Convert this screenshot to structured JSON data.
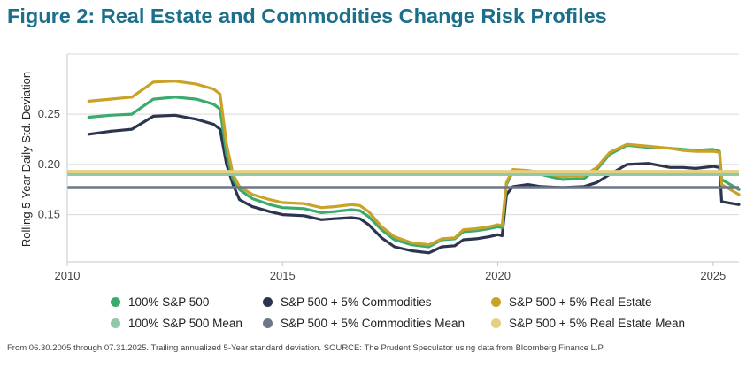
{
  "title": "Figure 2: Real Estate and Commodities Change Risk Profiles",
  "source": "From 06.30.2005 through 07.31.2025. Trailing annualized 5-Year standard deviation. SOURCE: The Prudent Speculator using data from Bloomberg Finance L.P",
  "colors": {
    "sp500": "#3aaa6e",
    "commodities": "#2c3550",
    "realestate": "#c9a227",
    "sp500_mean": "#8fc9a8",
    "commodities_mean": "#6e7787",
    "realestate_mean": "#e5cf80"
  },
  "chart_data": {
    "type": "line",
    "title": "Figure 2: Real Estate and Commodities Change Risk Profiles",
    "xlabel": "",
    "ylabel": "Rolling 5-Year Daily Std. Deviation",
    "xlim": [
      2010,
      2025.6
    ],
    "ylim": [
      0.103,
      0.31
    ],
    "xticks": [
      2010,
      2015,
      2020,
      2025
    ],
    "yticks": [
      0.15,
      0.2,
      0.25
    ],
    "ytick_labels": [
      "0.15",
      "0.20",
      "0.25"
    ],
    "grid": "horizontal",
    "legend": "bottom",
    "series": [
      {
        "name": "100% S&P 500",
        "color": "#3aaa6e",
        "points": [
          [
            2010.5,
            0.247
          ],
          [
            2011.0,
            0.249
          ],
          [
            2011.5,
            0.25
          ],
          [
            2012.0,
            0.265
          ],
          [
            2012.5,
            0.267
          ],
          [
            2013.0,
            0.265
          ],
          [
            2013.4,
            0.26
          ],
          [
            2013.55,
            0.255
          ],
          [
            2013.7,
            0.21
          ],
          [
            2013.85,
            0.185
          ],
          [
            2014.0,
            0.175
          ],
          [
            2014.3,
            0.166
          ],
          [
            2014.7,
            0.16
          ],
          [
            2015.0,
            0.157
          ],
          [
            2015.5,
            0.156
          ],
          [
            2015.9,
            0.152
          ],
          [
            2016.2,
            0.153
          ],
          [
            2016.6,
            0.155
          ],
          [
            2016.8,
            0.154
          ],
          [
            2017.0,
            0.148
          ],
          [
            2017.3,
            0.135
          ],
          [
            2017.6,
            0.125
          ],
          [
            2018.0,
            0.12
          ],
          [
            2018.4,
            0.118
          ],
          [
            2018.7,
            0.125
          ],
          [
            2019.0,
            0.126
          ],
          [
            2019.2,
            0.133
          ],
          [
            2019.5,
            0.134
          ],
          [
            2019.8,
            0.136
          ],
          [
            2020.0,
            0.138
          ],
          [
            2020.1,
            0.137
          ],
          [
            2020.2,
            0.18
          ],
          [
            2020.35,
            0.193
          ],
          [
            2020.7,
            0.192
          ],
          [
            2021.0,
            0.19
          ],
          [
            2021.5,
            0.185
          ],
          [
            2022.0,
            0.186
          ],
          [
            2022.3,
            0.195
          ],
          [
            2022.6,
            0.21
          ],
          [
            2023.0,
            0.219
          ],
          [
            2023.5,
            0.217
          ],
          [
            2024.0,
            0.216
          ],
          [
            2024.3,
            0.215
          ],
          [
            2024.6,
            0.214
          ],
          [
            2025.0,
            0.215
          ],
          [
            2025.15,
            0.213
          ],
          [
            2025.2,
            0.185
          ],
          [
            2025.6,
            0.175
          ]
        ]
      },
      {
        "name": "S&P 500 + 5% Commodities",
        "color": "#2c3550",
        "points": [
          [
            2010.5,
            0.23
          ],
          [
            2011.0,
            0.233
          ],
          [
            2011.5,
            0.235
          ],
          [
            2012.0,
            0.248
          ],
          [
            2012.5,
            0.249
          ],
          [
            2013.0,
            0.245
          ],
          [
            2013.4,
            0.24
          ],
          [
            2013.55,
            0.235
          ],
          [
            2013.7,
            0.2
          ],
          [
            2013.85,
            0.18
          ],
          [
            2014.0,
            0.165
          ],
          [
            2014.3,
            0.158
          ],
          [
            2014.7,
            0.153
          ],
          [
            2015.0,
            0.15
          ],
          [
            2015.5,
            0.149
          ],
          [
            2015.9,
            0.145
          ],
          [
            2016.2,
            0.146
          ],
          [
            2016.6,
            0.147
          ],
          [
            2016.8,
            0.146
          ],
          [
            2017.0,
            0.14
          ],
          [
            2017.3,
            0.127
          ],
          [
            2017.6,
            0.118
          ],
          [
            2018.0,
            0.114
          ],
          [
            2018.4,
            0.112
          ],
          [
            2018.7,
            0.118
          ],
          [
            2019.0,
            0.119
          ],
          [
            2019.2,
            0.125
          ],
          [
            2019.5,
            0.126
          ],
          [
            2019.8,
            0.128
          ],
          [
            2020.0,
            0.13
          ],
          [
            2020.1,
            0.129
          ],
          [
            2020.2,
            0.17
          ],
          [
            2020.35,
            0.178
          ],
          [
            2020.7,
            0.18
          ],
          [
            2021.0,
            0.178
          ],
          [
            2021.5,
            0.177
          ],
          [
            2022.0,
            0.178
          ],
          [
            2022.3,
            0.182
          ],
          [
            2022.6,
            0.19
          ],
          [
            2023.0,
            0.2
          ],
          [
            2023.5,
            0.201
          ],
          [
            2024.0,
            0.197
          ],
          [
            2024.3,
            0.197
          ],
          [
            2024.6,
            0.196
          ],
          [
            2025.0,
            0.198
          ],
          [
            2025.15,
            0.197
          ],
          [
            2025.2,
            0.163
          ],
          [
            2025.6,
            0.16
          ]
        ]
      },
      {
        "name": "S&P 500 + 5% Real Estate",
        "color": "#c9a227",
        "points": [
          [
            2010.5,
            0.263
          ],
          [
            2011.0,
            0.265
          ],
          [
            2011.5,
            0.267
          ],
          [
            2012.0,
            0.282
          ],
          [
            2012.5,
            0.283
          ],
          [
            2013.0,
            0.28
          ],
          [
            2013.4,
            0.275
          ],
          [
            2013.55,
            0.27
          ],
          [
            2013.7,
            0.22
          ],
          [
            2013.85,
            0.19
          ],
          [
            2014.0,
            0.178
          ],
          [
            2014.3,
            0.17
          ],
          [
            2014.7,
            0.165
          ],
          [
            2015.0,
            0.162
          ],
          [
            2015.5,
            0.161
          ],
          [
            2015.9,
            0.157
          ],
          [
            2016.2,
            0.158
          ],
          [
            2016.6,
            0.16
          ],
          [
            2016.8,
            0.159
          ],
          [
            2017.0,
            0.153
          ],
          [
            2017.3,
            0.138
          ],
          [
            2017.6,
            0.128
          ],
          [
            2018.0,
            0.122
          ],
          [
            2018.4,
            0.12
          ],
          [
            2018.7,
            0.126
          ],
          [
            2019.0,
            0.127
          ],
          [
            2019.2,
            0.135
          ],
          [
            2019.5,
            0.136
          ],
          [
            2019.8,
            0.138
          ],
          [
            2020.0,
            0.14
          ],
          [
            2020.1,
            0.139
          ],
          [
            2020.2,
            0.182
          ],
          [
            2020.35,
            0.195
          ],
          [
            2020.7,
            0.194
          ],
          [
            2021.0,
            0.192
          ],
          [
            2021.5,
            0.188
          ],
          [
            2022.0,
            0.189
          ],
          [
            2022.3,
            0.197
          ],
          [
            2022.6,
            0.212
          ],
          [
            2023.0,
            0.22
          ],
          [
            2023.5,
            0.218
          ],
          [
            2024.0,
            0.216
          ],
          [
            2024.3,
            0.214
          ],
          [
            2024.6,
            0.213
          ],
          [
            2025.0,
            0.213
          ],
          [
            2025.15,
            0.212
          ],
          [
            2025.2,
            0.18
          ],
          [
            2025.6,
            0.17
          ]
        ]
      }
    ],
    "means": [
      {
        "name": "100% S&P 500 Mean",
        "color": "#8fc9a8",
        "value": 0.19
      },
      {
        "name": "S&P 500 + 5% Commodities Mean",
        "color": "#6e7787",
        "value": 0.177
      },
      {
        "name": "S&P 500 + 5% Real Estate Mean",
        "color": "#e5cf80",
        "value": 0.193
      }
    ]
  },
  "legend": [
    {
      "label": "100% S&P 500",
      "color": "#3aaa6e"
    },
    {
      "label": "S&P 500 + 5% Commodities",
      "color": "#2c3550"
    },
    {
      "label": "S&P 500 + 5% Real Estate",
      "color": "#c9a227"
    },
    {
      "label": "100% S&P 500 Mean",
      "color": "#8fc9a8"
    },
    {
      "label": "S&P 500 + 5% Commodities Mean",
      "color": "#6e7787"
    },
    {
      "label": "S&P 500 + 5% Real Estate Mean",
      "color": "#e5cf80"
    }
  ]
}
